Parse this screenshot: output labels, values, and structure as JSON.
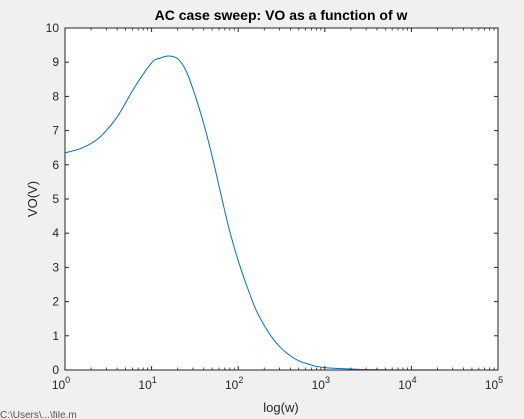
{
  "chart_data": {
    "type": "line",
    "title": "AC case sweep: VO as a function of w",
    "xlabel": "log(w)",
    "ylabel": "VO(V)",
    "xscale": "log",
    "xlim": [
      1,
      100000
    ],
    "ylim": [
      0,
      10
    ],
    "grid": false,
    "x_ticks": [
      {
        "base": "10",
        "exp": "0"
      },
      {
        "base": "10",
        "exp": "1"
      },
      {
        "base": "10",
        "exp": "2"
      },
      {
        "base": "10",
        "exp": "3"
      },
      {
        "base": "10",
        "exp": "4"
      },
      {
        "base": "10",
        "exp": "5"
      }
    ],
    "y_ticks": [
      "0",
      "1",
      "2",
      "3",
      "4",
      "5",
      "6",
      "7",
      "8",
      "9",
      "10"
    ],
    "line_color": "#0072bd",
    "series": [
      {
        "x": [
          1,
          1.6,
          2.5,
          4,
          6.3,
          10,
          12.6,
          15.8,
          20,
          25,
          31.6,
          40,
          50,
          63,
          79,
          100,
          126,
          158,
          200,
          251,
          316,
          398,
          501,
          631,
          794,
          1000,
          1585,
          2512,
          3981,
          6310,
          10000,
          20000,
          50000,
          100000
        ],
        "y": [
          6.35,
          6.5,
          6.8,
          7.4,
          8.25,
          8.98,
          9.12,
          9.18,
          9.1,
          8.75,
          8.05,
          7.2,
          6.25,
          5.15,
          4.1,
          3.2,
          2.45,
          1.8,
          1.3,
          0.92,
          0.63,
          0.42,
          0.27,
          0.18,
          0.11,
          0.07,
          0.04,
          0.02,
          0.01,
          0.005,
          0.003,
          0.002,
          0.001,
          0.0005
        ]
      }
    ]
  },
  "footer_fragment": "C:\\Users\\...\\file.m"
}
